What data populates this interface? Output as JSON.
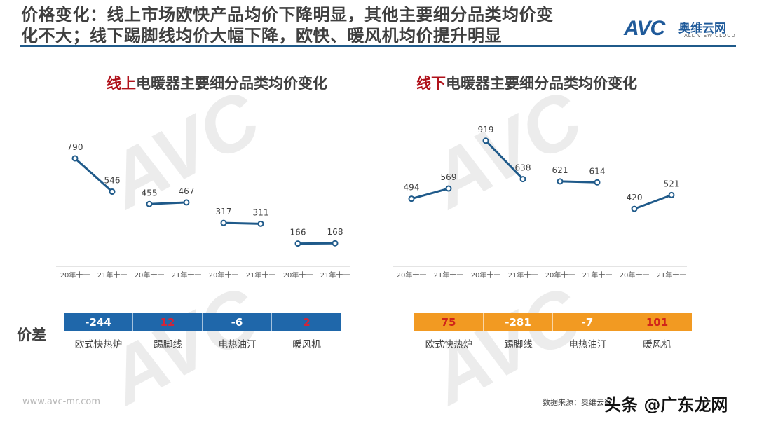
{
  "header": {
    "title_line1": "价格变化：线上市场欧快产品均价下降明显，其他主要细分品类均价变",
    "title_line2": "化不大；线下踢脚线均价大幅下降，欧快、暖风机均价提升明显",
    "logo_text": "AVC",
    "logo_cn": "奥维云网",
    "logo_en": "ALL VIEW CLOUD",
    "rule_color": "#1f5a8a"
  },
  "watermark": {
    "brand": "AVC",
    "cn": "奥维云网",
    "en": "ALL VIEW CLOUD"
  },
  "diff_label": "价差",
  "online": {
    "title_highlight": "线上",
    "title_rest": "电暖器主要细分品类均价变化",
    "x_labels": [
      "20年十一",
      "21年十一",
      "20年十一",
      "21年十一",
      "20年十一",
      "21年十一",
      "20年十一",
      "21年十一"
    ],
    "diffs": [
      {
        "value": "-244",
        "color": "#ffffff"
      },
      {
        "value": "12",
        "color": "#d0253a"
      },
      {
        "value": "-6",
        "color": "#ffffff"
      },
      {
        "value": "2",
        "color": "#d0253a"
      }
    ],
    "bar_color": "#1f67aa",
    "categories": [
      "欧式快热炉",
      "踢脚线",
      "电热油汀",
      "暖风机"
    ]
  },
  "offline": {
    "title_highlight": "线下",
    "title_rest": "电暖器主要细分品类均价变化",
    "x_labels": [
      "20年十一",
      "21年十一",
      "20年十一",
      "21年十一",
      "20年十一",
      "21年十一",
      "20年十一",
      "21年十一"
    ],
    "diffs": [
      {
        "value": "75",
        "color": "#d0251a"
      },
      {
        "value": "-281",
        "color": "#ffffff"
      },
      {
        "value": "-7",
        "color": "#ffffff"
      },
      {
        "value": "101",
        "color": "#d0251a"
      }
    ],
    "bar_color": "#f29a22",
    "categories": [
      "欧式快热炉",
      "踢脚线",
      "电热油汀",
      "暖风机"
    ]
  },
  "footer": {
    "url": "www.avc-mr.com",
    "source": "数据来源：奥维云网",
    "overlay": "头条 @广东龙网"
  },
  "chart_data": [
    {
      "type": "line",
      "title": "线上电暖器主要细分品类均价变化",
      "categories": [
        "欧式快热炉",
        "踢脚线",
        "电热油汀",
        "暖风机"
      ],
      "x": [
        "20年十一",
        "21年十一"
      ],
      "series": [
        {
          "name": "欧式快热炉",
          "values": [
            790,
            546
          ]
        },
        {
          "name": "踢脚线",
          "values": [
            455,
            467
          ]
        },
        {
          "name": "电热油汀",
          "values": [
            317,
            311
          ]
        },
        {
          "name": "暖风机",
          "values": [
            166,
            168
          ]
        }
      ],
      "price_diff": [
        -244,
        12,
        -6,
        2
      ],
      "line_color": "#1f5a8a",
      "grid": false
    },
    {
      "type": "line",
      "title": "线下电暖器主要细分品类均价变化",
      "categories": [
        "欧式快热炉",
        "踢脚线",
        "电热油汀",
        "暖风机"
      ],
      "x": [
        "20年十一",
        "21年十一"
      ],
      "series": [
        {
          "name": "欧式快热炉",
          "values": [
            494,
            569
          ]
        },
        {
          "name": "踢脚线",
          "values": [
            919,
            638
          ]
        },
        {
          "name": "电热油汀",
          "values": [
            621,
            614
          ]
        },
        {
          "name": "暖风机",
          "values": [
            420,
            521
          ]
        }
      ],
      "price_diff": [
        75,
        -281,
        -7,
        101
      ],
      "line_color": "#1f5a8a",
      "grid": false
    }
  ]
}
